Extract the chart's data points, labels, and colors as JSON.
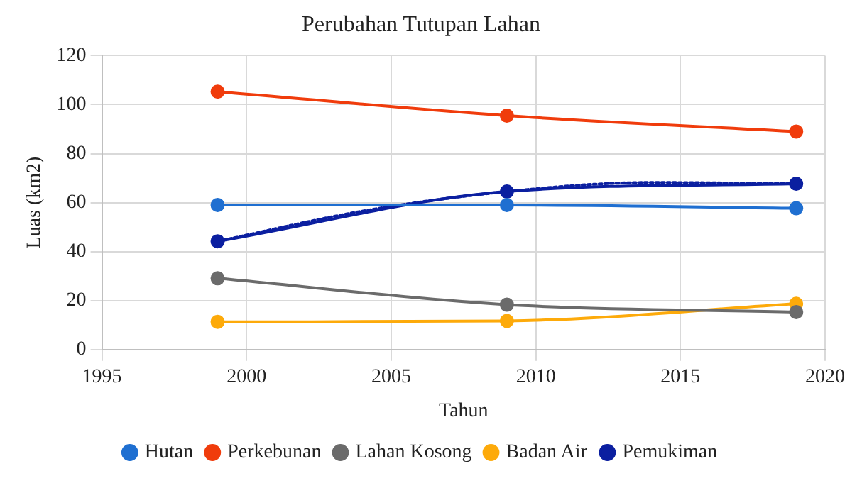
{
  "chart_data": {
    "type": "line",
    "title": "Perubahan Tutupan Lahan",
    "xlabel": "Tahun",
    "ylabel": "Luas (km2)",
    "x": [
      1999,
      2009,
      2019
    ],
    "series": [
      {
        "name": "Hutan",
        "color": "#1f6fd1",
        "values": [
          59,
          59,
          57.7
        ]
      },
      {
        "name": "Perkebunan",
        "color": "#f03c0c",
        "values": [
          105.3,
          95.5,
          89
        ]
      },
      {
        "name": "Lahan Kosong",
        "color": "#6b6b6b",
        "values": [
          29.1,
          18.3,
          15.3
        ]
      },
      {
        "name": "Badan Air",
        "color": "#fdaa0a",
        "values": [
          11.3,
          11.7,
          18.7
        ]
      },
      {
        "name": "Pemukiman",
        "color": "#0b1fa0",
        "values": [
          44.2,
          64.5,
          67.7
        ]
      },
      {
        "type": "line",
        "color": "#0b1fa0",
        "line_style": "dotted",
        "marker": "none",
        "x": [
          1999,
          2004,
          2009,
          2014,
          2019
        ],
        "values": [
          44.2,
          56.5,
          64.5,
          68.2,
          67.7
        ]
      }
    ],
    "xlim": [
      1995,
      2020
    ],
    "xticks": [
      1995,
      2000,
      2005,
      2010,
      2015,
      2020
    ],
    "ylim": [
      0,
      120
    ],
    "yticks": [
      0,
      20,
      40,
      60,
      80,
      100,
      120
    ],
    "grid": true,
    "legend": "bottom",
    "marker": "circle",
    "line_style": "solid"
  }
}
